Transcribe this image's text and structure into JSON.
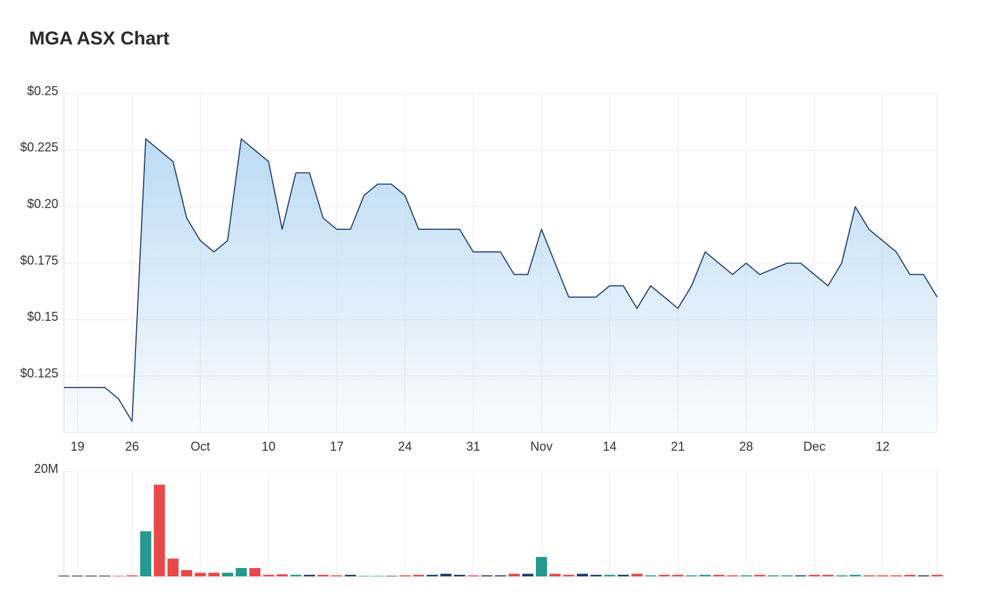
{
  "chart_data": [
    {
      "type": "area",
      "title": "MGA ASX Chart",
      "categories": [
        null,
        "19",
        null,
        null,
        null,
        "26",
        null,
        null,
        null,
        null,
        "Oct",
        null,
        null,
        null,
        null,
        "10",
        null,
        null,
        null,
        null,
        "17",
        null,
        null,
        null,
        null,
        "24",
        null,
        null,
        null,
        null,
        "31",
        null,
        null,
        null,
        null,
        "Nov",
        null,
        null,
        null,
        null,
        "14",
        null,
        null,
        null,
        null,
        "21",
        null,
        null,
        null,
        null,
        "28",
        null,
        null,
        null,
        null,
        "Dec",
        null,
        null,
        null,
        null,
        "12",
        null,
        null,
        null,
        null
      ],
      "values": [
        0.12,
        0.12,
        0.12,
        0.12,
        0.115,
        0.105,
        0.23,
        0.225,
        0.22,
        0.195,
        0.185,
        0.18,
        0.185,
        0.23,
        0.225,
        0.22,
        0.19,
        0.215,
        0.215,
        0.195,
        0.19,
        0.19,
        0.205,
        0.21,
        0.21,
        0.205,
        0.19,
        0.19,
        0.19,
        0.19,
        0.18,
        0.18,
        0.18,
        0.17,
        0.17,
        0.19,
        0.175,
        0.16,
        0.16,
        0.16,
        0.165,
        0.165,
        0.155,
        0.165,
        0.16,
        0.155,
        0.165,
        0.18,
        0.175,
        0.17,
        0.175,
        0.17,
        0.1725,
        0.175,
        0.175,
        0.17,
        0.165,
        0.175,
        0.2,
        0.19,
        0.185,
        0.18,
        0.17,
        0.17,
        0.16
      ],
      "color": "#1f3d6d",
      "fill_color": "#b9d9f3",
      "ylim": [
        0.1,
        0.25
      ],
      "yticks": [
        {
          "value": 0.125,
          "label": "$0.125"
        },
        {
          "value": 0.15,
          "label": "$0.15"
        },
        {
          "value": 0.175,
          "label": "$0.175"
        },
        {
          "value": 0.2,
          "label": "$0.20"
        },
        {
          "value": 0.225,
          "label": "$0.225"
        },
        {
          "value": 0.25,
          "label": "$0.25"
        }
      ],
      "grid": true
    },
    {
      "type": "bar",
      "values": [
        0.15,
        0.15,
        0.15,
        0.15,
        0.1,
        0.2,
        8.6,
        17.5,
        3.4,
        1.2,
        0.7,
        0.7,
        0.7,
        1.6,
        1.6,
        0.3,
        0.4,
        0.3,
        0.3,
        0.3,
        0.2,
        0.3,
        0.1,
        0.1,
        0.1,
        0.2,
        0.3,
        0.3,
        0.5,
        0.3,
        0.2,
        0.2,
        0.2,
        0.5,
        0.5,
        3.7,
        0.5,
        0.3,
        0.5,
        0.3,
        0.3,
        0.3,
        0.5,
        0.2,
        0.3,
        0.3,
        0.2,
        0.3,
        0.3,
        0.2,
        0.2,
        0.3,
        0.2,
        0.2,
        0.2,
        0.3,
        0.3,
        0.2,
        0.3,
        0.2,
        0.2,
        0.2,
        0.3,
        0.2,
        0.3
      ],
      "colors": [
        "#1e3a6e",
        "#1e3a6e",
        "#1e3a6e",
        "#1e3a6e",
        "#e84848",
        "#e84848",
        "#26998e",
        "#e84848",
        "#e84848",
        "#e84848",
        "#e84848",
        "#e84848",
        "#26998e",
        "#26998e",
        "#e84848",
        "#e84848",
        "#e84848",
        "#26998e",
        "#1e3a6e",
        "#e84848",
        "#e84848",
        "#1e3a6e",
        "#26998e",
        "#26998e",
        "#1e3a6e",
        "#e84848",
        "#e84848",
        "#1e3a6e",
        "#1e3a6e",
        "#1e3a6e",
        "#e84848",
        "#1e3a6e",
        "#1e3a6e",
        "#e84848",
        "#1e3a6e",
        "#26998e",
        "#e84848",
        "#e84848",
        "#1e3a6e",
        "#1e3a6e",
        "#26998e",
        "#1e3a6e",
        "#e84848",
        "#26998e",
        "#e84848",
        "#e84848",
        "#26998e",
        "#26998e",
        "#e84848",
        "#e84848",
        "#26998e",
        "#e84848",
        "#26998e",
        "#26998e",
        "#1e3a6e",
        "#e84848",
        "#e84848",
        "#26998e",
        "#26998e",
        "#e84848",
        "#e84848",
        "#e84848",
        "#e84848",
        "#1e3a6e",
        "#e84848"
      ],
      "ylim": [
        0,
        20
      ],
      "yticks": [
        {
          "value": 20,
          "label": "20M"
        }
      ],
      "grid": true
    }
  ]
}
